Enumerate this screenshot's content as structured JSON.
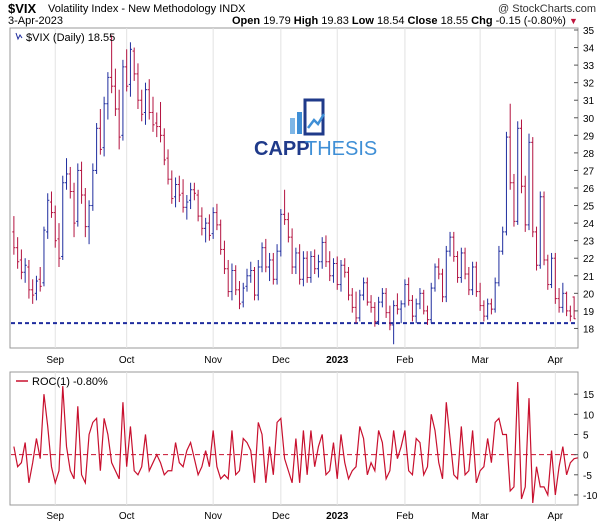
{
  "header": {
    "symbol": "$VIX",
    "name": "Volatility Index - New Methodology  INDX",
    "copyright": "@ StockCharts.com",
    "date": "3-Apr-2023",
    "open_label": "Open",
    "open": "19.79",
    "high_label": "High",
    "high": "19.83",
    "low_label": "Low",
    "low": "18.54",
    "close_label": "Close",
    "close": "18.55",
    "chg_label": "Chg",
    "chg": "-0.15 (-0.80%)",
    "down_arrow": "▼"
  },
  "logo": {
    "part1": "CAPP",
    "part2": "THESIS"
  },
  "chart_data": [
    {
      "type": "ohlc",
      "legend": "$VIX (Daily) 18.55",
      "ylim": [
        17,
        35
      ],
      "yticks": [
        18,
        19,
        20,
        21,
        22,
        23,
        24,
        25,
        26,
        27,
        28,
        29,
        30,
        31,
        32,
        33,
        34,
        35
      ],
      "xticks": [
        "Sep",
        "Oct",
        "Nov",
        "Dec",
        "2023",
        "Feb",
        "Mar",
        "Apr"
      ],
      "xtick_days": [
        11,
        30,
        53,
        71,
        86,
        104,
        124,
        144
      ],
      "support_level": 18.3,
      "colors": {
        "up": "#1f2d9e",
        "down": "#b3123f",
        "support": "#1f2d9e"
      },
      "series": [
        {
          "o": 23.5,
          "h": 24.4,
          "l": 22.2,
          "c": 22.6
        },
        {
          "o": 22.6,
          "h": 23.2,
          "l": 21.4,
          "c": 21.8
        },
        {
          "o": 21.9,
          "h": 22.5,
          "l": 20.8,
          "c": 21.2
        },
        {
          "o": 21.2,
          "h": 22.0,
          "l": 20.6,
          "c": 21.6
        },
        {
          "o": 21.5,
          "h": 21.9,
          "l": 19.7,
          "c": 20.2
        },
        {
          "o": 20.2,
          "h": 20.8,
          "l": 19.4,
          "c": 19.9
        },
        {
          "o": 20.0,
          "h": 21.0,
          "l": 19.6,
          "c": 20.7
        },
        {
          "o": 20.8,
          "h": 21.5,
          "l": 20.1,
          "c": 20.4
        },
        {
          "o": 20.6,
          "h": 23.8,
          "l": 20.4,
          "c": 23.6
        },
        {
          "o": 23.5,
          "h": 25.7,
          "l": 23.1,
          "c": 25.3
        },
        {
          "o": 25.2,
          "h": 25.8,
          "l": 24.3,
          "c": 24.6
        },
        {
          "o": 24.6,
          "h": 25.0,
          "l": 22.6,
          "c": 23.0
        },
        {
          "o": 23.1,
          "h": 24.0,
          "l": 21.5,
          "c": 22.0
        },
        {
          "o": 22.1,
          "h": 26.7,
          "l": 21.9,
          "c": 26.3
        },
        {
          "o": 26.3,
          "h": 27.7,
          "l": 25.9,
          "c": 26.8
        },
        {
          "o": 26.8,
          "h": 27.2,
          "l": 25.4,
          "c": 25.8
        },
        {
          "o": 25.8,
          "h": 26.3,
          "l": 23.2,
          "c": 24.0
        },
        {
          "o": 24.1,
          "h": 27.4,
          "l": 23.8,
          "c": 27.0
        },
        {
          "o": 27.0,
          "h": 27.5,
          "l": 25.1,
          "c": 25.6
        },
        {
          "o": 25.6,
          "h": 26.0,
          "l": 23.2,
          "c": 23.8
        },
        {
          "o": 23.8,
          "h": 25.3,
          "l": 22.8,
          "c": 25.0
        },
        {
          "o": 25.0,
          "h": 27.4,
          "l": 24.7,
          "c": 27.0
        },
        {
          "o": 27.0,
          "h": 29.7,
          "l": 26.8,
          "c": 29.4
        },
        {
          "o": 29.4,
          "h": 30.5,
          "l": 27.9,
          "c": 28.2
        },
        {
          "o": 28.3,
          "h": 31.2,
          "l": 27.8,
          "c": 30.8
        },
        {
          "o": 30.8,
          "h": 32.6,
          "l": 29.9,
          "c": 32.3
        },
        {
          "o": 32.3,
          "h": 34.7,
          "l": 31.4,
          "c": 31.8
        },
        {
          "o": 31.8,
          "h": 32.8,
          "l": 30.1,
          "c": 30.5
        },
        {
          "o": 30.5,
          "h": 31.6,
          "l": 28.2,
          "c": 28.9
        },
        {
          "o": 29.0,
          "h": 33.3,
          "l": 28.7,
          "c": 32.9
        },
        {
          "o": 32.9,
          "h": 33.9,
          "l": 31.5,
          "c": 31.8
        },
        {
          "o": 31.9,
          "h": 34.3,
          "l": 31.2,
          "c": 33.9
        },
        {
          "o": 33.8,
          "h": 34.0,
          "l": 32.1,
          "c": 32.5
        },
        {
          "o": 32.5,
          "h": 33.1,
          "l": 30.5,
          "c": 31.0
        },
        {
          "o": 31.0,
          "h": 31.6,
          "l": 29.8,
          "c": 30.2
        },
        {
          "o": 30.3,
          "h": 32.0,
          "l": 29.6,
          "c": 31.6
        },
        {
          "o": 31.6,
          "h": 32.2,
          "l": 29.9,
          "c": 30.3
        },
        {
          "o": 30.3,
          "h": 31.2,
          "l": 29.2,
          "c": 29.6
        },
        {
          "o": 29.7,
          "h": 30.3,
          "l": 28.9,
          "c": 29.5
        },
        {
          "o": 29.5,
          "h": 30.9,
          "l": 28.6,
          "c": 29.0
        },
        {
          "o": 29.0,
          "h": 29.4,
          "l": 27.3,
          "c": 27.6
        },
        {
          "o": 27.7,
          "h": 28.2,
          "l": 26.2,
          "c": 26.5
        },
        {
          "o": 26.5,
          "h": 27.0,
          "l": 25.1,
          "c": 25.4
        },
        {
          "o": 25.5,
          "h": 26.6,
          "l": 24.9,
          "c": 26.2
        },
        {
          "o": 26.2,
          "h": 26.7,
          "l": 25.2,
          "c": 25.6
        },
        {
          "o": 25.7,
          "h": 26.5,
          "l": 24.6,
          "c": 24.9
        },
        {
          "o": 24.9,
          "h": 25.6,
          "l": 24.2,
          "c": 25.2
        },
        {
          "o": 25.3,
          "h": 26.3,
          "l": 24.8,
          "c": 25.9
        },
        {
          "o": 25.9,
          "h": 26.3,
          "l": 25.3,
          "c": 25.7
        },
        {
          "o": 25.6,
          "h": 25.9,
          "l": 24.1,
          "c": 24.4
        },
        {
          "o": 24.4,
          "h": 24.9,
          "l": 23.3,
          "c": 23.7
        },
        {
          "o": 23.7,
          "h": 24.3,
          "l": 22.9,
          "c": 24.0
        },
        {
          "o": 24.0,
          "h": 24.5,
          "l": 23.0,
          "c": 23.3
        },
        {
          "o": 23.4,
          "h": 24.9,
          "l": 23.1,
          "c": 24.6
        },
        {
          "o": 24.6,
          "h": 25.1,
          "l": 23.6,
          "c": 23.9
        },
        {
          "o": 23.9,
          "h": 24.2,
          "l": 22.2,
          "c": 22.5
        },
        {
          "o": 22.5,
          "h": 23.0,
          "l": 21.1,
          "c": 21.4
        },
        {
          "o": 21.4,
          "h": 21.9,
          "l": 19.8,
          "c": 20.1
        },
        {
          "o": 20.1,
          "h": 21.7,
          "l": 19.6,
          "c": 21.3
        },
        {
          "o": 21.3,
          "h": 21.6,
          "l": 19.9,
          "c": 20.2
        },
        {
          "o": 20.2,
          "h": 20.7,
          "l": 19.1,
          "c": 19.4
        },
        {
          "o": 19.5,
          "h": 20.6,
          "l": 19.2,
          "c": 20.3
        },
        {
          "o": 20.4,
          "h": 21.4,
          "l": 20.1,
          "c": 21.0
        },
        {
          "o": 21.0,
          "h": 21.8,
          "l": 20.6,
          "c": 21.3
        },
        {
          "o": 21.3,
          "h": 21.5,
          "l": 19.6,
          "c": 19.9
        },
        {
          "o": 19.9,
          "h": 21.9,
          "l": 19.6,
          "c": 21.5
        },
        {
          "o": 21.5,
          "h": 22.9,
          "l": 21.2,
          "c": 22.6
        },
        {
          "o": 22.6,
          "h": 23.1,
          "l": 21.2,
          "c": 21.5
        },
        {
          "o": 21.5,
          "h": 22.3,
          "l": 20.7,
          "c": 21.9
        },
        {
          "o": 21.9,
          "h": 22.3,
          "l": 20.5,
          "c": 20.8
        },
        {
          "o": 20.8,
          "h": 22.8,
          "l": 20.5,
          "c": 22.4
        },
        {
          "o": 22.4,
          "h": 24.8,
          "l": 22.1,
          "c": 24.5
        },
        {
          "o": 24.5,
          "h": 25.9,
          "l": 23.9,
          "c": 24.2
        },
        {
          "o": 24.2,
          "h": 24.6,
          "l": 22.9,
          "c": 23.2
        },
        {
          "o": 23.2,
          "h": 23.7,
          "l": 21.1,
          "c": 21.5
        },
        {
          "o": 21.5,
          "h": 22.6,
          "l": 21.1,
          "c": 22.3
        },
        {
          "o": 22.3,
          "h": 22.8,
          "l": 20.5,
          "c": 20.8
        },
        {
          "o": 20.8,
          "h": 22.4,
          "l": 20.4,
          "c": 22.0
        },
        {
          "o": 22.0,
          "h": 22.4,
          "l": 20.6,
          "c": 20.9
        },
        {
          "o": 20.9,
          "h": 22.4,
          "l": 20.6,
          "c": 22.1
        },
        {
          "o": 22.1,
          "h": 22.5,
          "l": 21.1,
          "c": 21.4
        },
        {
          "o": 21.4,
          "h": 22.2,
          "l": 20.9,
          "c": 21.8
        },
        {
          "o": 21.8,
          "h": 23.2,
          "l": 21.4,
          "c": 22.9
        },
        {
          "o": 22.9,
          "h": 23.3,
          "l": 21.5,
          "c": 21.8
        },
        {
          "o": 21.8,
          "h": 22.4,
          "l": 20.7,
          "c": 21.0
        },
        {
          "o": 21.0,
          "h": 22.0,
          "l": 20.6,
          "c": 21.7
        },
        {
          "o": 21.7,
          "h": 22.1,
          "l": 20.2,
          "c": 20.5
        },
        {
          "o": 20.5,
          "h": 21.9,
          "l": 20.1,
          "c": 21.6
        },
        {
          "o": 21.6,
          "h": 22.0,
          "l": 20.9,
          "c": 21.2
        },
        {
          "o": 21.2,
          "h": 21.5,
          "l": 19.6,
          "c": 19.9
        },
        {
          "o": 19.9,
          "h": 20.3,
          "l": 18.9,
          "c": 19.2
        },
        {
          "o": 19.2,
          "h": 20.1,
          "l": 18.3,
          "c": 18.6
        },
        {
          "o": 18.6,
          "h": 20.2,
          "l": 18.4,
          "c": 19.9
        },
        {
          "o": 19.9,
          "h": 20.9,
          "l": 19.6,
          "c": 20.6
        },
        {
          "o": 20.6,
          "h": 20.9,
          "l": 19.3,
          "c": 19.5
        },
        {
          "o": 19.5,
          "h": 19.9,
          "l": 18.9,
          "c": 19.2
        },
        {
          "o": 19.2,
          "h": 19.5,
          "l": 18.1,
          "c": 18.4
        },
        {
          "o": 18.4,
          "h": 19.8,
          "l": 18.2,
          "c": 19.5
        },
        {
          "o": 19.5,
          "h": 20.3,
          "l": 19.2,
          "c": 20.0
        },
        {
          "o": 20.0,
          "h": 20.3,
          "l": 18.6,
          "c": 18.9
        },
        {
          "o": 18.9,
          "h": 19.3,
          "l": 17.9,
          "c": 18.2
        },
        {
          "o": 18.2,
          "h": 19.6,
          "l": 17.1,
          "c": 19.3
        },
        {
          "o": 19.3,
          "h": 20.0,
          "l": 18.8,
          "c": 19.1
        },
        {
          "o": 19.1,
          "h": 19.6,
          "l": 18.3,
          "c": 19.4
        },
        {
          "o": 19.4,
          "h": 20.8,
          "l": 19.2,
          "c": 20.5
        },
        {
          "o": 20.5,
          "h": 20.9,
          "l": 19.3,
          "c": 19.6
        },
        {
          "o": 19.6,
          "h": 19.9,
          "l": 18.4,
          "c": 18.7
        },
        {
          "o": 18.7,
          "h": 19.7,
          "l": 18.3,
          "c": 19.4
        },
        {
          "o": 19.4,
          "h": 20.3,
          "l": 19.1,
          "c": 20.0
        },
        {
          "o": 20.0,
          "h": 20.2,
          "l": 18.8,
          "c": 19.0
        },
        {
          "o": 19.0,
          "h": 19.3,
          "l": 18.2,
          "c": 18.5
        },
        {
          "o": 18.5,
          "h": 20.6,
          "l": 18.3,
          "c": 20.3
        },
        {
          "o": 20.3,
          "h": 21.7,
          "l": 20.1,
          "c": 21.5
        },
        {
          "o": 21.5,
          "h": 22.0,
          "l": 20.8,
          "c": 21.1
        },
        {
          "o": 21.1,
          "h": 21.4,
          "l": 19.5,
          "c": 19.8
        },
        {
          "o": 19.8,
          "h": 22.7,
          "l": 19.5,
          "c": 22.4
        },
        {
          "o": 22.4,
          "h": 23.5,
          "l": 22.1,
          "c": 23.2
        },
        {
          "o": 23.2,
          "h": 23.5,
          "l": 21.8,
          "c": 22.1
        },
        {
          "o": 22.1,
          "h": 22.4,
          "l": 20.6,
          "c": 20.9
        },
        {
          "o": 20.9,
          "h": 22.6,
          "l": 20.6,
          "c": 22.3
        },
        {
          "o": 22.3,
          "h": 22.6,
          "l": 20.8,
          "c": 21.1
        },
        {
          "o": 21.1,
          "h": 21.5,
          "l": 19.9,
          "c": 20.2
        },
        {
          "o": 20.2,
          "h": 21.8,
          "l": 19.9,
          "c": 21.5
        },
        {
          "o": 21.5,
          "h": 21.8,
          "l": 19.8,
          "c": 20.1
        },
        {
          "o": 20.1,
          "h": 20.6,
          "l": 19.0,
          "c": 19.3
        },
        {
          "o": 19.3,
          "h": 19.6,
          "l": 18.4,
          "c": 18.7
        },
        {
          "o": 18.7,
          "h": 19.7,
          "l": 18.5,
          "c": 19.4
        },
        {
          "o": 19.4,
          "h": 19.7,
          "l": 18.8,
          "c": 19.1
        },
        {
          "o": 19.1,
          "h": 20.9,
          "l": 18.9,
          "c": 20.6
        },
        {
          "o": 20.6,
          "h": 22.7,
          "l": 20.4,
          "c": 22.4
        },
        {
          "o": 22.4,
          "h": 23.8,
          "l": 22.2,
          "c": 23.5
        },
        {
          "o": 23.5,
          "h": 29.2,
          "l": 23.3,
          "c": 28.9
        },
        {
          "o": 28.9,
          "h": 30.8,
          "l": 25.9,
          "c": 26.3
        },
        {
          "o": 26.3,
          "h": 26.8,
          "l": 23.8,
          "c": 24.1
        },
        {
          "o": 24.1,
          "h": 29.8,
          "l": 23.9,
          "c": 29.4
        },
        {
          "o": 29.4,
          "h": 29.9,
          "l": 25.7,
          "c": 26.1
        },
        {
          "o": 26.1,
          "h": 26.7,
          "l": 23.5,
          "c": 23.9
        },
        {
          "o": 23.9,
          "h": 29.1,
          "l": 23.6,
          "c": 28.6
        },
        {
          "o": 28.6,
          "h": 28.9,
          "l": 23.2,
          "c": 23.5
        },
        {
          "o": 23.5,
          "h": 23.8,
          "l": 21.3,
          "c": 21.6
        },
        {
          "o": 21.6,
          "h": 25.8,
          "l": 21.4,
          "c": 25.5
        },
        {
          "o": 25.5,
          "h": 25.8,
          "l": 21.6,
          "c": 21.9
        },
        {
          "o": 21.9,
          "h": 22.2,
          "l": 20.2,
          "c": 20.5
        },
        {
          "o": 20.5,
          "h": 22.3,
          "l": 20.3,
          "c": 22.0
        },
        {
          "o": 22.0,
          "h": 22.3,
          "l": 19.4,
          "c": 19.7
        },
        {
          "o": 19.7,
          "h": 20.3,
          "l": 18.9,
          "c": 19.2
        },
        {
          "o": 19.2,
          "h": 20.6,
          "l": 18.9,
          "c": 20.0
        },
        {
          "o": 20.0,
          "h": 20.1,
          "l": 18.7,
          "c": 19.0
        },
        {
          "o": 19.0,
          "h": 19.3,
          "l": 18.4,
          "c": 18.7
        },
        {
          "o": 19.79,
          "h": 19.83,
          "l": 18.54,
          "c": 18.55
        }
      ]
    },
    {
      "type": "line",
      "legend": "ROC(1) -0.80%",
      "ylim": [
        -12,
        20
      ],
      "yticks": [
        -10,
        -5,
        0,
        5,
        10,
        15
      ],
      "zero_line": 0,
      "color": "#c8102e",
      "xticks": [
        "Sep",
        "Oct",
        "Nov",
        "Dec",
        "2023",
        "Feb",
        "Mar",
        "Apr"
      ],
      "values": [
        2,
        -3,
        -2,
        3,
        -7,
        -2,
        4,
        -1,
        15,
        7,
        -3,
        -7,
        -4,
        17,
        2,
        -4,
        -6,
        12,
        -5,
        -7,
        5,
        8,
        9,
        -4,
        9,
        5,
        -2,
        -4,
        -6,
        13,
        -3,
        7,
        -4,
        -5,
        -3,
        5,
        -4,
        -2,
        0,
        -2,
        -5,
        -4,
        -4,
        3,
        -2,
        -3,
        1,
        3,
        -1,
        -5,
        -3,
        1,
        -3,
        6,
        -3,
        -6,
        -5,
        -6,
        6,
        -5,
        -4,
        4,
        3,
        1,
        -7,
        8,
        5,
        -7,
        2,
        -5,
        8,
        9,
        -1,
        -4,
        -7,
        4,
        -7,
        6,
        -5,
        6,
        -3,
        2,
        5,
        -5,
        -4,
        3,
        -6,
        5,
        -2,
        -6,
        -4,
        -3,
        7,
        4,
        -5,
        -2,
        -4,
        6,
        3,
        -6,
        -4,
        6,
        -1,
        2,
        6,
        -4,
        -5,
        4,
        3,
        -5,
        -3,
        10,
        6,
        -2,
        -6,
        13,
        4,
        -5,
        -6,
        7,
        -5,
        -4,
        6,
        -7,
        -4,
        -3,
        4,
        -2,
        8,
        9,
        5,
        5,
        -9,
        -8,
        18,
        -11,
        -8,
        14,
        -12,
        -3,
        -8,
        -8,
        -10,
        1,
        -10,
        -3,
        2,
        -5,
        -2,
        -1,
        -0.8
      ]
    }
  ]
}
